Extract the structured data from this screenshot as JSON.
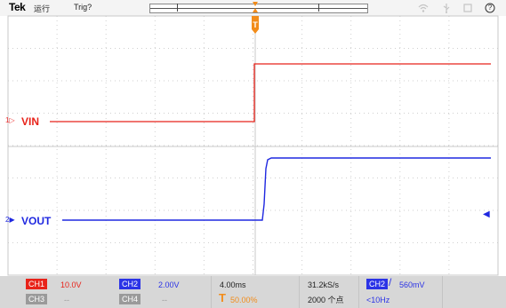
{
  "topbar": {
    "logo": "Tek",
    "run_status": "运行",
    "trigger_status": "Trig?",
    "icons": [
      "wifi-icon",
      "usb-icon",
      "screen-icon",
      "help-icon"
    ],
    "help_glyph": "?"
  },
  "channels": {
    "ch1": {
      "label": "VIN",
      "marker": "1▷",
      "color": "#e8231a"
    },
    "ch2": {
      "label": "VOUT",
      "marker": "2▶",
      "color": "#1f28e0"
    }
  },
  "statusbar": {
    "ch1": {
      "name": "CH1",
      "scale": "10.0V"
    },
    "ch2": {
      "name": "CH2",
      "scale": "2.00V"
    },
    "ch3": {
      "name": "CH3",
      "value": "--"
    },
    "ch4": {
      "name": "CH4",
      "value": "--"
    },
    "timebase": "4.00ms",
    "trigger_position_letter": "T",
    "trigger_position": "50.00%",
    "sample_rate": "31.2kS/s",
    "record_length": "2000 个点",
    "trigger_source": "CH2",
    "trigger_slope": "/",
    "trigger_level": "560mV",
    "trigger_frequency": "<10Hz"
  }
}
